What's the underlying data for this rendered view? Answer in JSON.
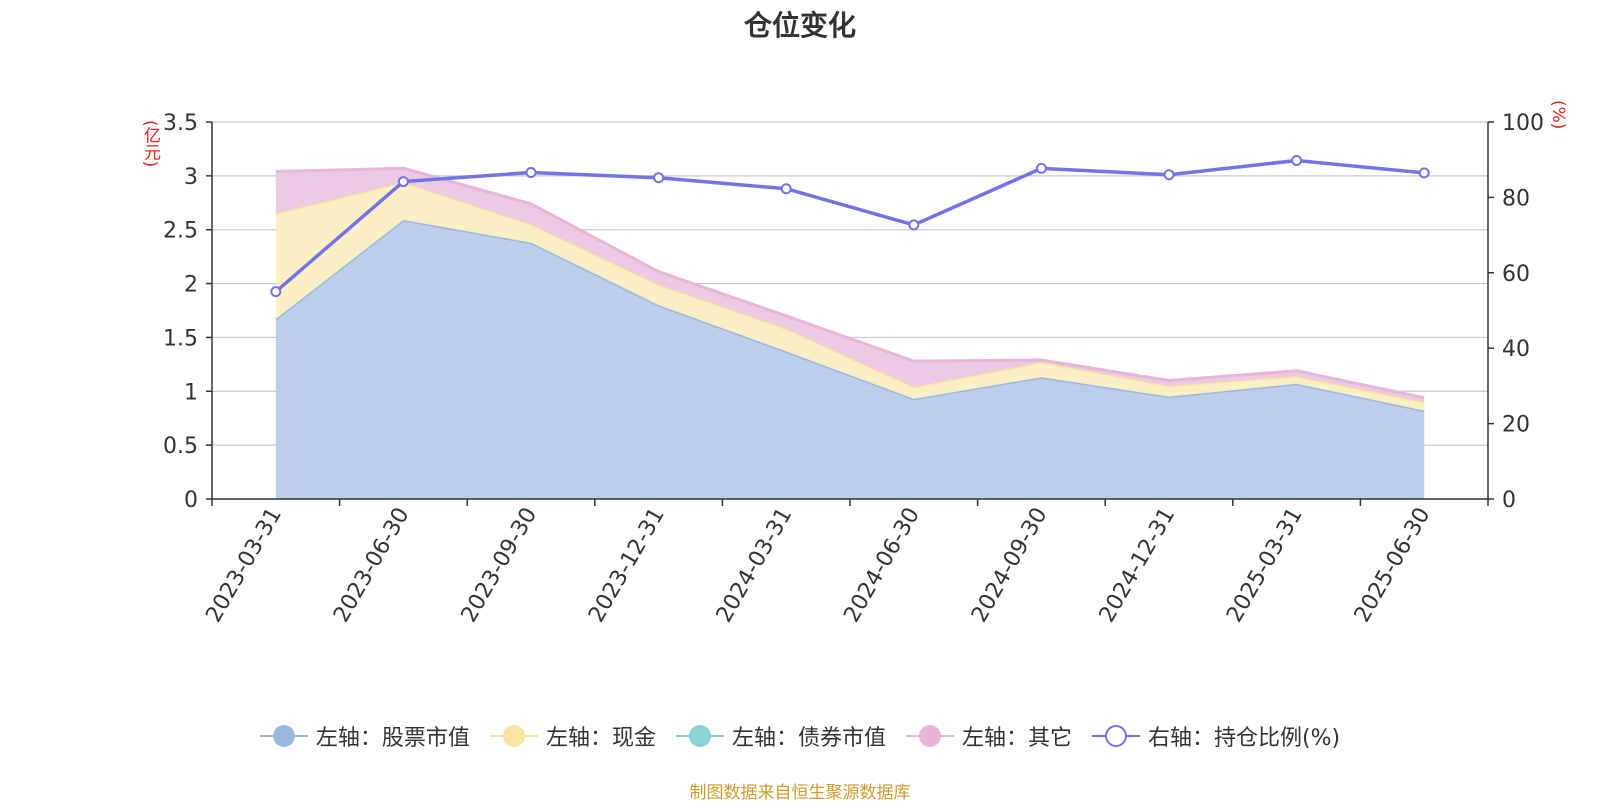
{
  "title": "仓位变化",
  "unit_left": "(亿元)",
  "unit_right": "(%)",
  "source": "制图数据来自恒生聚源数据库",
  "chart_data": {
    "type": "area",
    "categories": [
      "2023-03-31",
      "2023-06-30",
      "2023-09-30",
      "2023-12-31",
      "2024-03-31",
      "2024-06-30",
      "2024-09-30",
      "2024-12-31",
      "2025-03-31",
      "2025-06-30"
    ],
    "left_axis": {
      "ylim": [
        0,
        3.5
      ],
      "ticks": [
        "0",
        "0.5",
        "1",
        "1.5",
        "2",
        "2.5",
        "3",
        "3.5"
      ]
    },
    "right_axis": {
      "ylim": [
        0,
        100
      ],
      "ticks": [
        "0",
        "20",
        "40",
        "60",
        "80",
        "100"
      ]
    },
    "series": [
      {
        "name": "左轴：股票市值",
        "axis": "left",
        "stacked": true,
        "color": "#9cb8e2",
        "fill": "#b7cceb",
        "values": [
          1.67,
          2.59,
          2.38,
          1.8,
          1.37,
          0.93,
          1.13,
          0.95,
          1.07,
          0.82
        ]
      },
      {
        "name": "左轴：现金",
        "axis": "left",
        "stacked": true,
        "color": "#f8e6a0",
        "fill": "#fbefc2",
        "values": [
          0.98,
          0.35,
          0.17,
          0.19,
          0.21,
          0.11,
          0.14,
          0.1,
          0.07,
          0.08
        ]
      },
      {
        "name": "左轴：债券市值",
        "axis": "left",
        "stacked": true,
        "color": "#88d3d3",
        "fill": "#a8e0e0",
        "values": [
          0,
          0,
          0,
          0,
          0,
          0,
          0,
          0,
          0,
          0
        ]
      },
      {
        "name": "左轴：其它",
        "axis": "left",
        "stacked": true,
        "color": "#e8b4d8",
        "fill": "#ecc7e2",
        "values": [
          0.39,
          0.13,
          0.19,
          0.12,
          0.12,
          0.24,
          0.02,
          0.05,
          0.05,
          0.04
        ]
      },
      {
        "name": "右轴：持仓比例(%)",
        "axis": "right",
        "type": "line",
        "color": "#7373e8",
        "values": [
          55.0,
          84.2,
          86.6,
          85.2,
          82.3,
          72.7,
          87.7,
          86.0,
          89.8,
          86.5
        ]
      }
    ],
    "grid": true,
    "legend_position": "bottom"
  }
}
